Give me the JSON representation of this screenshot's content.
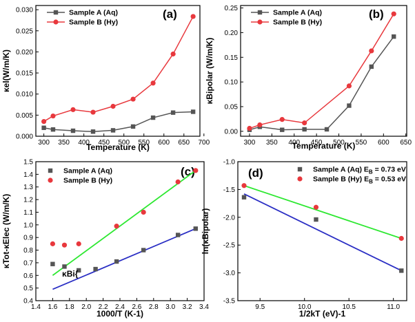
{
  "colors": {
    "black": "#000000",
    "gray": "#555555",
    "red": "#e8383d",
    "green": "#2ee832",
    "blue": "#2a2ec4"
  },
  "chart_data": [
    {
      "id": "a",
      "panel_label": "(a)",
      "type": "line",
      "xlabel": "Temperature (K)",
      "ylabel": "κel(W/m/K)",
      "xlim": [
        280,
        690
      ],
      "ylim": [
        0,
        0.031
      ],
      "xticks": [
        300,
        350,
        400,
        450,
        500,
        550,
        600,
        650,
        700
      ],
      "yticks": [
        0.0,
        0.005,
        0.01,
        0.015,
        0.02,
        0.025,
        0.03
      ],
      "ytick_labels": [
        "0.000",
        "0.005",
        "0.010",
        "0.015",
        "0.020",
        "0.025",
        "0.030"
      ],
      "legend": "top-left",
      "series": [
        {
          "name": "Sample A (Aq)",
          "color": "#555555",
          "marker": "square",
          "x": [
            300,
            323,
            373,
            423,
            473,
            523,
            573,
            623,
            673
          ],
          "y": [
            0.002,
            0.0016,
            0.0013,
            0.0011,
            0.0014,
            0.0023,
            0.0044,
            0.0056,
            0.0058
          ]
        },
        {
          "name": "Sample B (Hy)",
          "color": "#e8383d",
          "marker": "circle",
          "x": [
            300,
            323,
            373,
            423,
            473,
            523,
            573,
            623,
            673
          ],
          "y": [
            0.0035,
            0.0048,
            0.0063,
            0.0057,
            0.0071,
            0.0088,
            0.0126,
            0.0195,
            0.0284
          ]
        }
      ]
    },
    {
      "id": "b",
      "panel_label": "(b)",
      "type": "line",
      "xlabel": "Temperature (K)",
      "ylabel": "κBipolar (W/m/K)",
      "xlim": [
        280,
        652
      ],
      "ylim": [
        -0.01,
        0.255
      ],
      "xticks": [
        300,
        350,
        400,
        450,
        500,
        550,
        600,
        650
      ],
      "yticks": [
        0.0,
        0.05,
        0.1,
        0.15,
        0.2,
        0.25
      ],
      "ytick_labels": [
        "0.00",
        "0.05",
        "0.10",
        "0.15",
        "0.20",
        "0.25"
      ],
      "legend": "top-left",
      "series": [
        {
          "name": "Sample A (Aq)",
          "color": "#555555",
          "marker": "square",
          "x": [
            300,
            323,
            373,
            423,
            473,
            523,
            573,
            623
          ],
          "y": [
            0.003,
            0.009,
            0.003,
            0.004,
            0.004,
            0.052,
            0.131,
            0.192
          ]
        },
        {
          "name": "Sample B (Hy)",
          "color": "#e8383d",
          "marker": "circle",
          "x": [
            300,
            323,
            373,
            423,
            523,
            573,
            623
          ],
          "y": [
            0.006,
            0.013,
            0.024,
            0.017,
            0.092,
            0.163,
            0.238
          ]
        }
      ]
    },
    {
      "id": "c",
      "panel_label": "(c)",
      "type": "scatter",
      "xlabel": "1000/T (K-1)",
      "ylabel": "κTot-κElec (W/m/K)",
      "annotation": "κBi{",
      "xlim": [
        1.4,
        3.4
      ],
      "ylim": [
        0.4,
        1.5
      ],
      "xticks": [
        1.4,
        1.6,
        1.8,
        2.0,
        2.2,
        2.4,
        2.6,
        2.8,
        3.0,
        3.2,
        3.4
      ],
      "xtick_labels": [
        "1.4",
        "1.6",
        "1.8",
        "2.0",
        "2.2",
        "2.4",
        "2.6",
        "2.8",
        "3.0",
        "3.2",
        "3.4"
      ],
      "yticks": [
        0.4,
        0.5,
        0.6,
        0.7,
        0.8,
        0.9,
        1.0,
        1.1,
        1.2,
        1.3,
        1.4,
        1.5
      ],
      "ytick_labels": [
        "0.4",
        "0.5",
        "0.6",
        "0.7",
        "0.8",
        "0.9",
        "1.0",
        "1.1",
        "1.2",
        "1.3",
        "1.4",
        "1.5"
      ],
      "legend": "top-left",
      "series": [
        {
          "name": "Sample A (Aq)",
          "color": "#555555",
          "marker": "square",
          "x": [
            1.6,
            1.74,
            1.91,
            2.11,
            2.36,
            2.68,
            3.09,
            3.3
          ],
          "y": [
            0.69,
            0.67,
            0.64,
            0.65,
            0.71,
            0.8,
            0.92,
            0.97
          ]
        },
        {
          "name": "Sample B (Hy)",
          "color": "#e8383d",
          "marker": "circle",
          "x": [
            1.6,
            1.74,
            1.91,
            2.36,
            2.68,
            3.09,
            3.3
          ],
          "y": [
            0.85,
            0.84,
            0.85,
            0.99,
            1.1,
            1.34,
            1.43
          ]
        }
      ],
      "fits": [
        {
          "color": "#2a2ec4",
          "x": [
            1.6,
            3.3
          ],
          "y": [
            0.49,
            0.97
          ]
        },
        {
          "color": "#2ee832",
          "x": [
            1.6,
            3.3
          ],
          "y": [
            0.6,
            1.43
          ]
        }
      ]
    },
    {
      "id": "d",
      "panel_label": "(d)",
      "type": "scatter",
      "xlabel": "1/2kT (eV)-1",
      "ylabel": "ln(κBipolar)",
      "xlim": [
        9.25,
        11.15
      ],
      "ylim": [
        -3.5,
        -1.0
      ],
      "xticks": [
        9.5,
        10.0,
        10.5,
        11.0
      ],
      "xtick_labels": [
        "9.5",
        "10.0",
        "10.5",
        "11.0"
      ],
      "yticks": [
        -3.5,
        -3.0,
        -2.5,
        -2.0,
        -1.5,
        -1.0
      ],
      "ytick_labels": [
        "-3.5",
        "-3.0",
        "-2.5",
        "-2.0",
        "-1.5",
        "-1.0"
      ],
      "legend": "top-right",
      "series": [
        {
          "name": "Sample A (Aq) E",
          "sub": "B",
          "tail": " = 0.73 eV",
          "color": "#555555",
          "marker": "square",
          "x": [
            9.32,
            10.13,
            11.09
          ],
          "y": [
            -1.64,
            -2.04,
            -2.96
          ]
        },
        {
          "name": "Sample B (Hy) E",
          "sub": "B",
          "tail": " = 0.53 eV",
          "color": "#e8383d",
          "marker": "circle",
          "x": [
            9.32,
            10.13,
            11.09
          ],
          "y": [
            -1.43,
            -1.82,
            -2.38
          ]
        }
      ],
      "fits": [
        {
          "color": "#2a2ec4",
          "x": [
            9.32,
            11.09
          ],
          "y": [
            -1.58,
            -2.96
          ]
        },
        {
          "color": "#2ee832",
          "x": [
            9.32,
            11.09
          ],
          "y": [
            -1.43,
            -2.38
          ]
        }
      ]
    }
  ]
}
